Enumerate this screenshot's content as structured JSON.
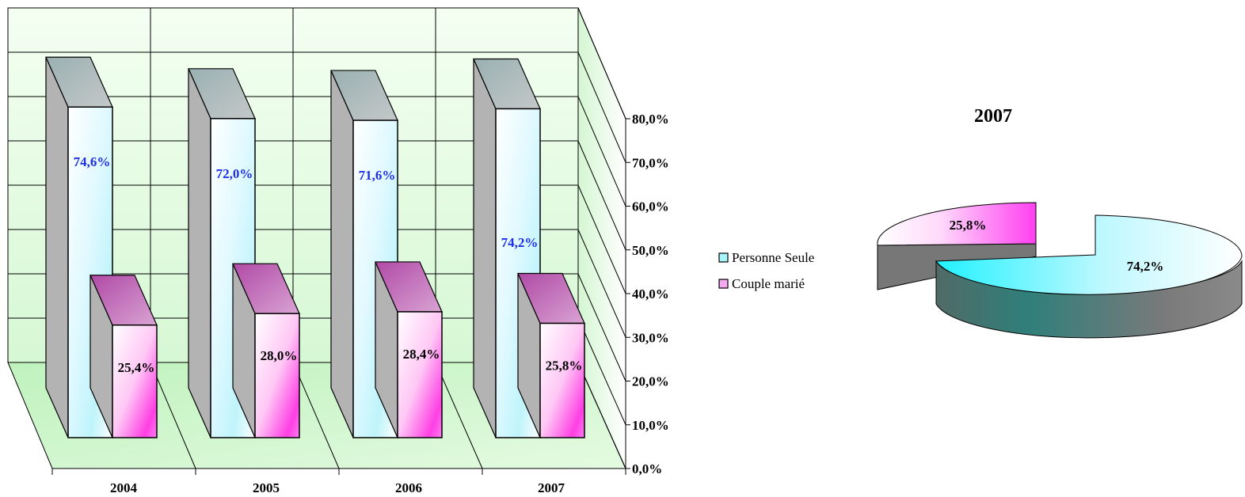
{
  "chart_data": [
    {
      "type": "bar",
      "categories": [
        "2004",
        "2005",
        "2006",
        "2007"
      ],
      "series": [
        {
          "name": "Personne Seule",
          "values": [
            74.6,
            72.0,
            71.6,
            74.2
          ],
          "labels": [
            "74,6%",
            "72,0%",
            "71,6%",
            "74,2%"
          ]
        },
        {
          "name": "Couple marié",
          "values": [
            25.4,
            28.0,
            28.4,
            25.8
          ],
          "labels": [
            "25,4%",
            "28,0%",
            "28,4%",
            "25,8%"
          ]
        }
      ],
      "y_ticks": [
        "0,0%",
        "10,0%",
        "20,0%",
        "30,0%",
        "40,0%",
        "50,0%",
        "60,0%",
        "70,0%",
        "80,0%"
      ],
      "ylim": [
        0,
        80
      ],
      "three_d": true,
      "grid": true,
      "legend": "right"
    },
    {
      "type": "pie",
      "title": "2007",
      "slices": [
        {
          "name": "Personne Seule",
          "value": 74.2,
          "label": "74,2%"
        },
        {
          "name": "Couple marié",
          "value": 25.8,
          "label": "25,8%"
        }
      ],
      "three_d": true,
      "exploded": true
    }
  ],
  "legend": [
    {
      "label": "Personne Seule",
      "color": "#a8f4fb",
      "icon": "legend-swatch-cyan"
    },
    {
      "label": "Couple marié",
      "color": "#f6a8f0",
      "icon": "legend-swatch-magenta"
    }
  ],
  "colors": {
    "series_a_front": "#e8fbff",
    "series_b_front": "#ff5ee8",
    "bar_side": "#b2b2b2",
    "floor": "#c8f5c8",
    "wall": "#e6fbe4",
    "pie_cyan": "#33f1ff",
    "pie_magenta": "#ff55f0",
    "pie_wall": "#6d7d78"
  }
}
